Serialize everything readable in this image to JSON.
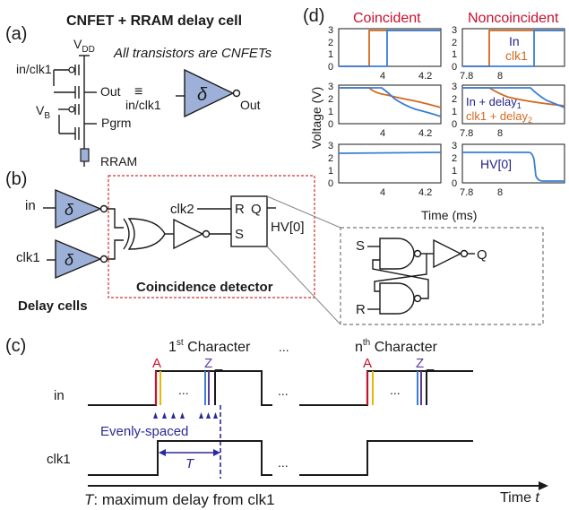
{
  "colors": {
    "delay_fill": "#9cb0d8",
    "red": "#c8102e",
    "orange": "#d2691e",
    "blue": "#3a7ed6",
    "navy": "#22228a",
    "gold": "#e6b800",
    "purple": "#5a3a9a",
    "dashed_box": "#d23030",
    "grey_box": "#777777"
  },
  "panel_a": {
    "label": "(a)",
    "title": "CNFET + RRAM delay cell",
    "vdd": "V",
    "vdd_sub": "DD",
    "note": "All transistors are CNFETs",
    "in_clk1": "in/clk1",
    "vb": "V",
    "vb_sub": "B",
    "out": "Out",
    "equiv": "≡",
    "pgrm": "Pgrm",
    "rram": "RRAM",
    "sym_in": "in/clk1",
    "sym_delta": "δ",
    "sym_out": "Out"
  },
  "panel_b": {
    "label": "(b)",
    "in": "in",
    "clk1": "clk1",
    "delta": "δ",
    "clk2": "clk2",
    "r": "R",
    "q": "Q",
    "s": "S",
    "hv": "HV[0]",
    "coincidence": "Coincidence detector",
    "delay_cells": "Delay cells",
    "inset_s": "S",
    "inset_r": "R",
    "inset_q": "Q"
  },
  "panel_c": {
    "label": "(c)",
    "first_char": "1",
    "first_sup": "st",
    "first_rest": " Character",
    "nth_char": "n",
    "nth_sup": "th",
    "nth_rest": " Character",
    "a": "A",
    "z": "Z",
    "underscore": "_",
    "dots": "...",
    "in": "in",
    "clk1": "clk1",
    "evenly": "Evenly-spaced",
    "t": "T",
    "caption_t": "T",
    "caption_rest": ": maximum delay from clk1",
    "time_label": "Time ",
    "time_var": "t"
  },
  "panel_d": {
    "label": "(d)",
    "coincident": "Coincident",
    "noncoincident": "Noncoincident",
    "ylabel": "Voltage (V)",
    "xlabel": "Time (ms)",
    "legend_in": "In",
    "legend_clk1": "clk1",
    "legend_in_delay": "In + delay",
    "legend_in_delay_sub": "1",
    "legend_clk_delay": "clk1 + delay",
    "legend_clk_delay_sub": "2",
    "legend_hv": "HV[0]",
    "left_xticks": [
      "4",
      "4.2"
    ],
    "right_xticks": [
      "7.8",
      "8"
    ],
    "yticks": [
      "0",
      "1",
      "2",
      "3"
    ]
  }
}
